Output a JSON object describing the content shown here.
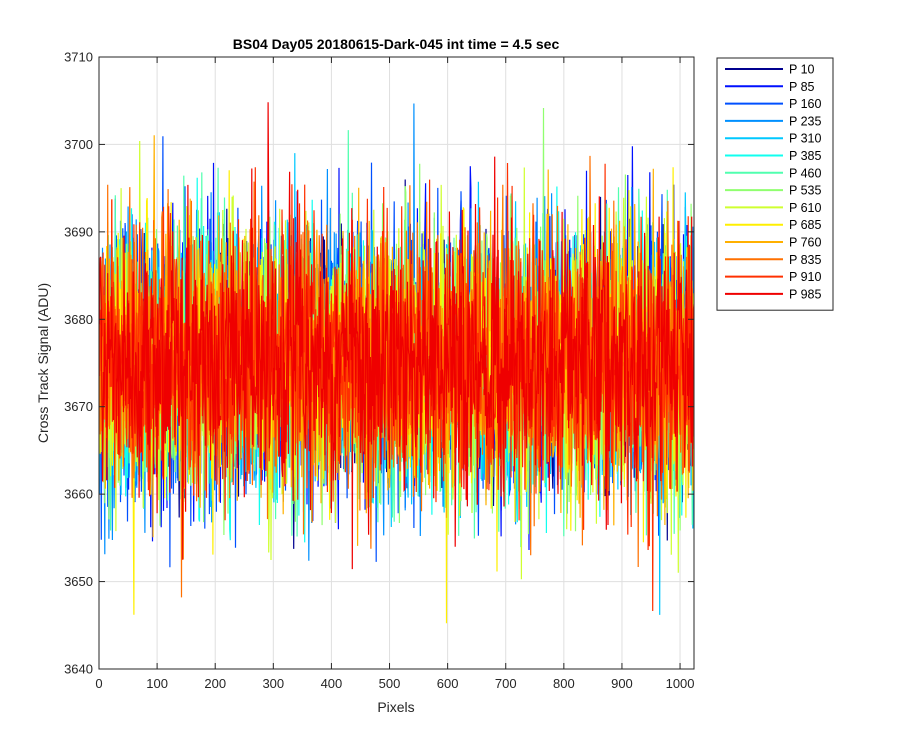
{
  "chart_data": {
    "type": "line",
    "title": "BS04 Day05 20180615-Dark-045 int time = 4.5 sec",
    "xlabel": "Pixels",
    "ylabel": "Cross Track Signal (ADU)",
    "xlim": [
      0,
      1024
    ],
    "ylim": [
      3640,
      3710
    ],
    "xticks": [
      0,
      100,
      200,
      300,
      400,
      500,
      600,
      700,
      800,
      900,
      1000
    ],
    "yticks": [
      3640,
      3650,
      3660,
      3670,
      3680,
      3690,
      3700,
      3710
    ],
    "grid": true,
    "legend_location": "outside-top-right",
    "noise": {
      "mean": 3675,
      "spread": 7.5,
      "min": 3645,
      "max": 3707
    },
    "series": [
      {
        "name": "P 10",
        "color": "#00008f"
      },
      {
        "name": "P 85",
        "color": "#0010ff"
      },
      {
        "name": "P 160",
        "color": "#0050ff"
      },
      {
        "name": "P 235",
        "color": "#0090ff"
      },
      {
        "name": "P 310",
        "color": "#00c8ff"
      },
      {
        "name": "P 385",
        "color": "#10ffef"
      },
      {
        "name": "P 460",
        "color": "#50ffaf"
      },
      {
        "name": "P 535",
        "color": "#90ff6f"
      },
      {
        "name": "P 610",
        "color": "#cfff30"
      },
      {
        "name": "P 685",
        "color": "#ffef00"
      },
      {
        "name": "P 760",
        "color": "#ffb000"
      },
      {
        "name": "P 835",
        "color": "#ff7000"
      },
      {
        "name": "P 910",
        "color": "#ff3000"
      },
      {
        "name": "P 985",
        "color": "#ef0000"
      }
    ]
  }
}
